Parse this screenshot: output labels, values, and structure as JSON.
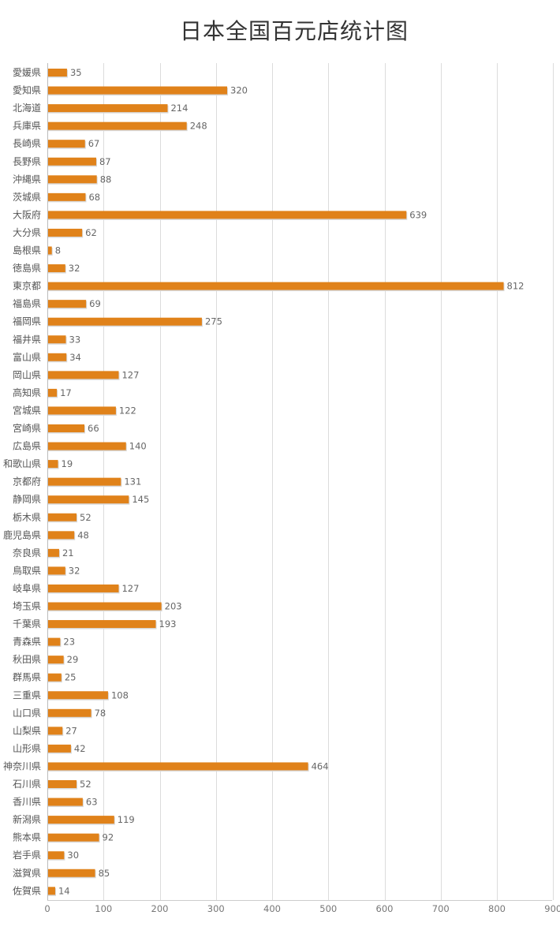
{
  "chart_data": {
    "type": "bar",
    "orientation": "horizontal",
    "title": "日本全国百元店统计图",
    "xlabel": "",
    "ylabel": "",
    "xlim": [
      0,
      900
    ],
    "ticks": [
      0,
      100,
      200,
      300,
      400,
      500,
      600,
      700,
      800,
      900
    ],
    "grid": "vertical",
    "legend": "none",
    "bar_color": "#e0821a",
    "categories": [
      "愛媛県",
      "愛知県",
      "北海道",
      "兵庫県",
      "長崎県",
      "長野県",
      "沖縄県",
      "茨城県",
      "大阪府",
      "大分県",
      "島根県",
      "徳島県",
      "東京都",
      "福島県",
      "福岡県",
      "福井県",
      "富山県",
      "岡山県",
      "高知県",
      "宮城県",
      "宮崎県",
      "広島県",
      "和歌山県",
      "京都府",
      "静岡県",
      "栃木県",
      "鹿児島県",
      "奈良県",
      "鳥取県",
      "岐阜県",
      "埼玉県",
      "千葉県",
      "青森県",
      "秋田県",
      "群馬県",
      "三重県",
      "山口県",
      "山梨県",
      "山形県",
      "神奈川県",
      "石川県",
      "香川県",
      "新潟県",
      "熊本県",
      "岩手県",
      "滋賀県",
      "佐賀県"
    ],
    "values": [
      35,
      320,
      214,
      248,
      67,
      87,
      88,
      68,
      639,
      62,
      8,
      32,
      812,
      69,
      275,
      33,
      34,
      127,
      17,
      122,
      66,
      140,
      19,
      131,
      145,
      52,
      48,
      21,
      32,
      127,
      203,
      193,
      23,
      29,
      25,
      108,
      78,
      27,
      42,
      464,
      52,
      63,
      119,
      92,
      30,
      85,
      14
    ]
  }
}
